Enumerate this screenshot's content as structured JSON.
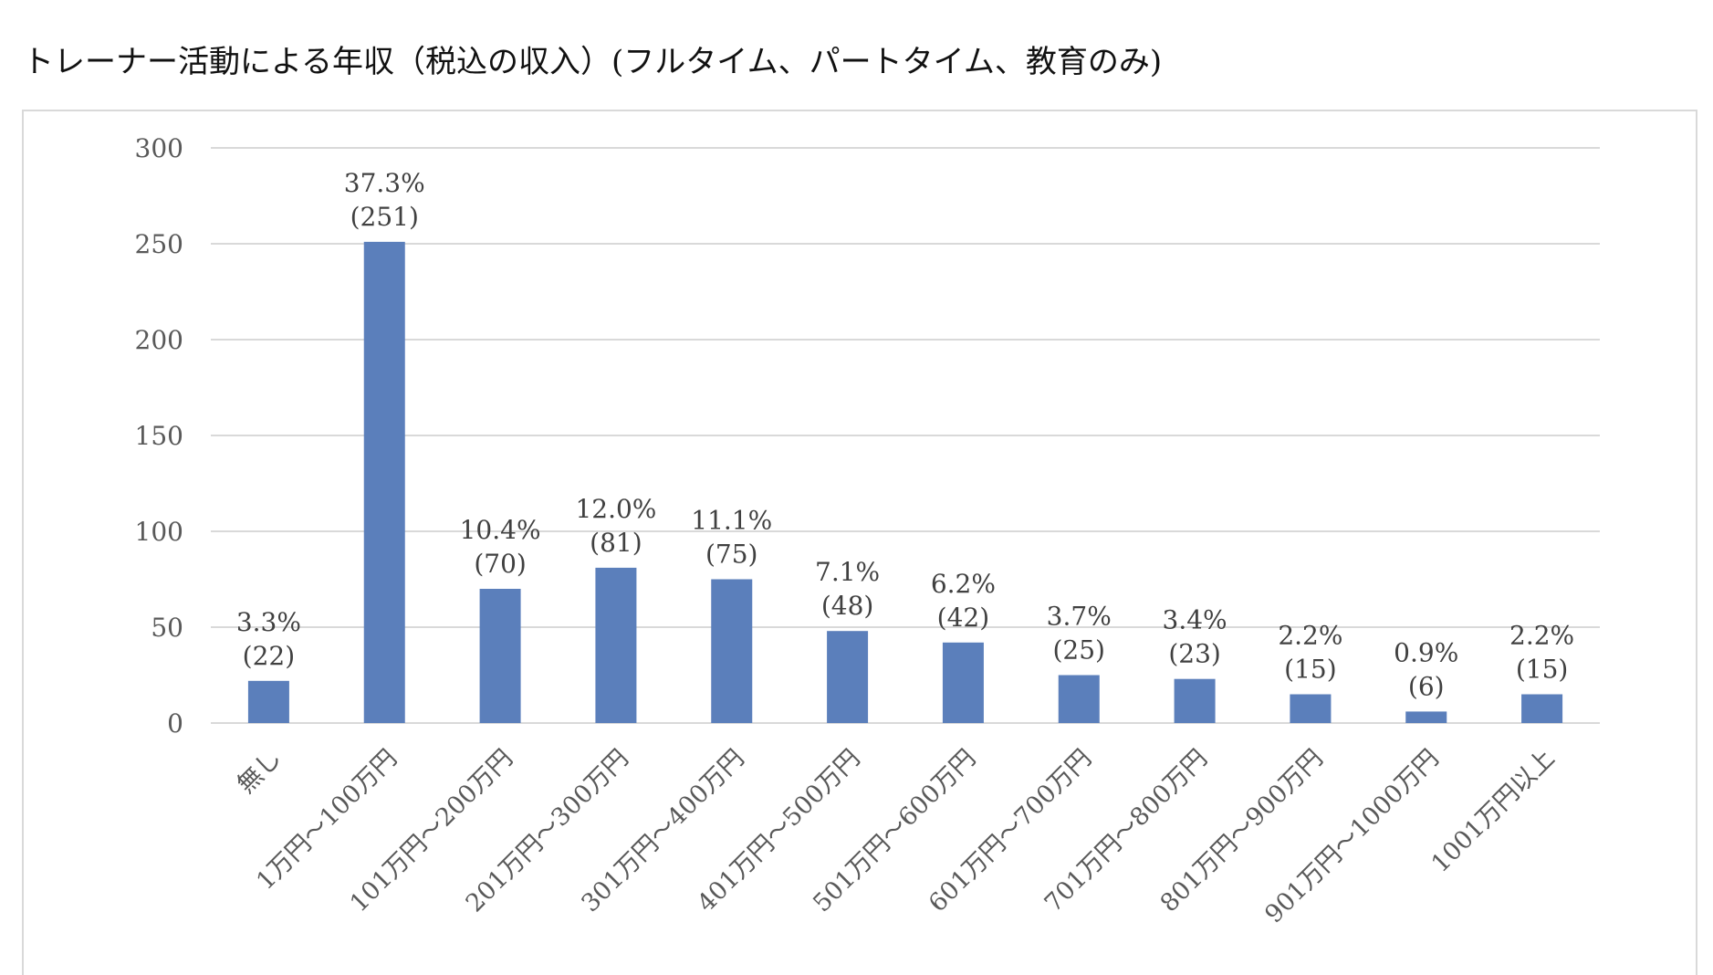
{
  "title": "トレーナー活動による年収（税込の収入）(フルタイム、パートタイム、教育のみ)",
  "colors": {
    "bar": "#5b7fbb",
    "grid": "#d9d9d9",
    "axis": "#d9d9d9"
  },
  "chart_data": {
    "type": "bar",
    "title": "トレーナー活動による年収（税込の収入）(フルタイム、パートタイム、教育のみ)",
    "xlabel": "",
    "ylabel": "",
    "ylim": [
      0,
      300
    ],
    "yticks": [
      0,
      50,
      100,
      150,
      200,
      250,
      300
    ],
    "grid": true,
    "legend": "none",
    "categories": [
      "無し",
      "1万円～100万円",
      "101万円～200万円",
      "201万円～300万円",
      "301万円～400万円",
      "401万円～500万円",
      "501万円～600万円",
      "601万円～700万円",
      "701万円～800万円",
      "801万円～900万円",
      "901万円～1000万円",
      "1001万円以上"
    ],
    "values": [
      22,
      251,
      70,
      81,
      75,
      48,
      42,
      25,
      23,
      15,
      6,
      15
    ],
    "percent_labels": [
      "3.3%",
      "37.3%",
      "10.4%",
      "12.0%",
      "11.1%",
      "7.1%",
      "6.2%",
      "3.7%",
      "3.4%",
      "2.2%",
      "0.9%",
      "2.2%"
    ],
    "count_labels": [
      "(22)",
      "(251)",
      "(70)",
      "(81)",
      "(75)",
      "(48)",
      "(42)",
      "(25)",
      "(23)",
      "(15)",
      "(6)",
      "(15)"
    ]
  }
}
